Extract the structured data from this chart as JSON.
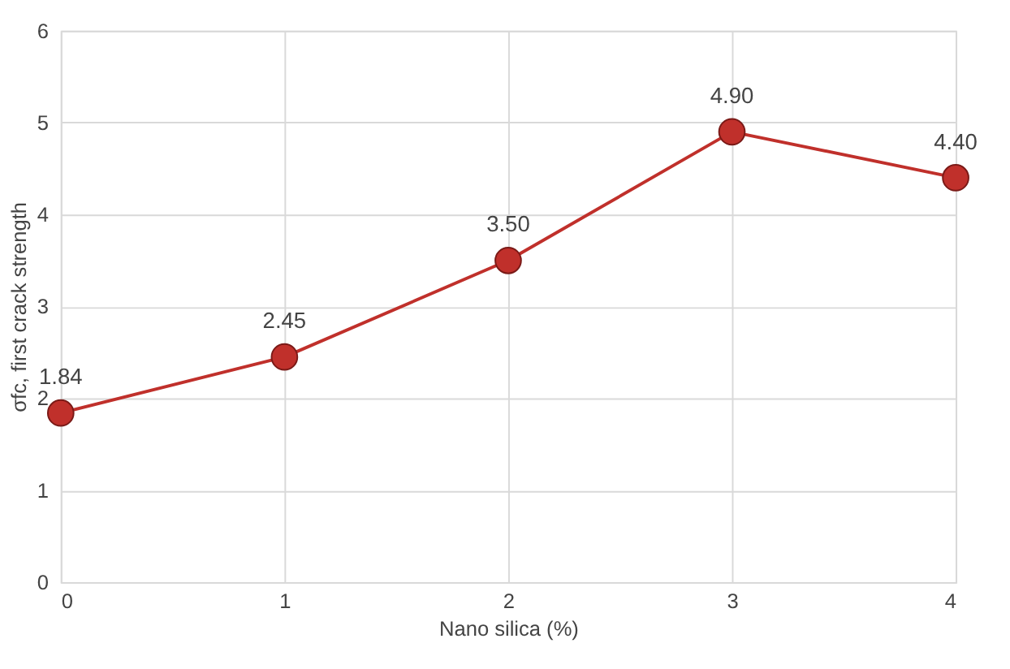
{
  "chart_data": {
    "type": "line",
    "xlabel": "Nano silica (%)",
    "ylabel": "σfc, first crack strength",
    "x": [
      0,
      1,
      2,
      3,
      4
    ],
    "series": [
      {
        "color": "#c0302b",
        "values": [
          1.84,
          2.45,
          3.5,
          4.9,
          4.4
        ],
        "value_labels": [
          "1.84",
          "2.45",
          "3.50",
          "4.90",
          "4.40"
        ]
      }
    ],
    "xlim": [
      0,
      4
    ],
    "xticks": [
      0,
      1,
      2,
      3,
      4
    ],
    "ylim": [
      0,
      6
    ],
    "yticks": [
      0,
      1,
      2,
      3,
      4,
      5,
      6
    ],
    "grid": true,
    "marker": "circle",
    "line_style": "solid"
  }
}
